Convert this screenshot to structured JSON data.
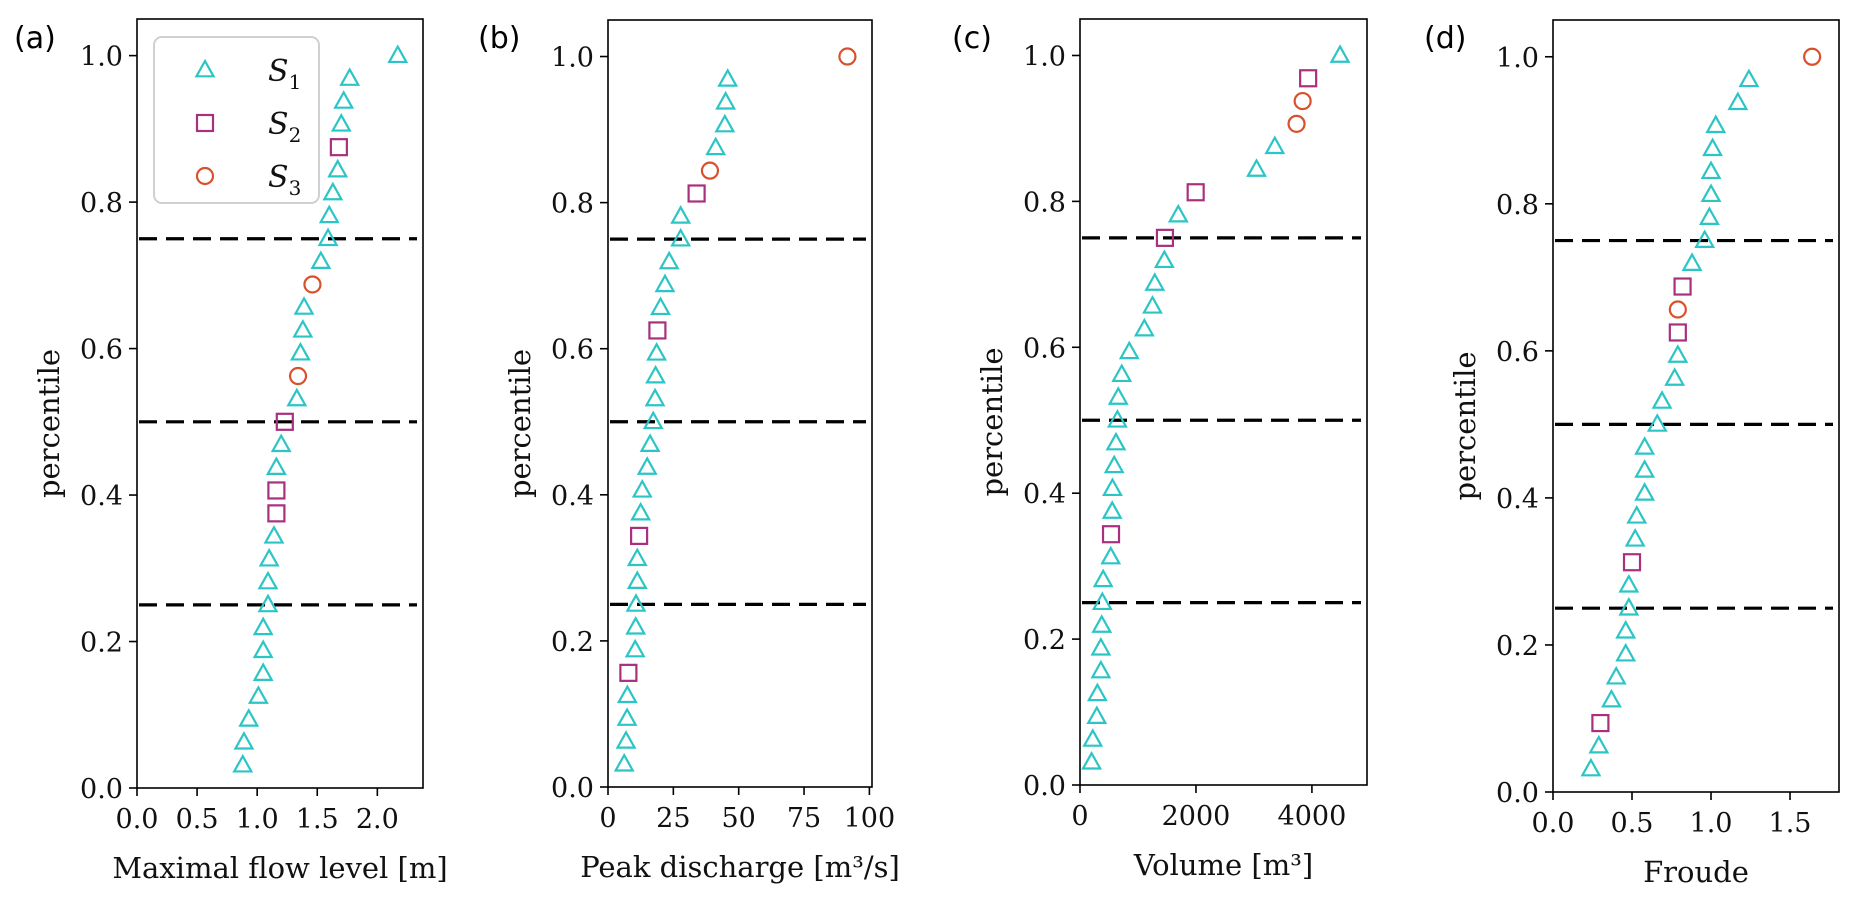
{
  "figure": {
    "colors": {
      "S1": "#2cc5c5",
      "S2": "#a8307f",
      "S3": "#d9512c",
      "reference_lines": "#000000"
    },
    "legend": {
      "placement": "upper-left of panel (a)",
      "entries": [
        {
          "series": "S1",
          "label": "S",
          "subscript": "1",
          "marker": "triangle"
        },
        {
          "series": "S2",
          "label": "S",
          "subscript": "2",
          "marker": "square"
        },
        {
          "series": "S3",
          "label": "S",
          "subscript": "3",
          "marker": "circle"
        }
      ]
    }
  },
  "chart_data": [
    {
      "type": "scatter",
      "panel_label": "(a)",
      "title": "",
      "xlabel": "Maximal flow level [m]",
      "ylabel": "percentile",
      "xlim": [
        0,
        2.38
      ],
      "ylim": [
        0,
        1.05
      ],
      "xticks": [
        0.0,
        0.5,
        1.0,
        1.5,
        2.0
      ],
      "xtick_labels": [
        "0.0",
        "0.5",
        "1.0",
        "1.5",
        "2.0"
      ],
      "yticks": [
        0.0,
        0.2,
        0.4,
        0.6,
        0.8,
        1.0
      ],
      "ytick_labels": [
        "0.0",
        "0.2",
        "0.4",
        "0.6",
        "0.8",
        "1.0"
      ],
      "hlines": [
        0.25,
        0.5,
        0.75
      ],
      "grid": false,
      "legend": true,
      "percentiles_count": 32,
      "x": [
        0.88,
        0.89,
        0.93,
        1.01,
        1.05,
        1.05,
        1.05,
        1.09,
        1.09,
        1.1,
        1.14,
        1.16,
        1.16,
        1.16,
        1.2,
        1.23,
        1.33,
        1.34,
        1.36,
        1.38,
        1.39,
        1.46,
        1.53,
        1.59,
        1.6,
        1.63,
        1.67,
        1.68,
        1.7,
        1.72,
        1.77,
        2.17
      ],
      "series_of_point": [
        "S1",
        "S1",
        "S1",
        "S1",
        "S1",
        "S1",
        "S1",
        "S1",
        "S1",
        "S1",
        "S1",
        "S2",
        "S2",
        "S1",
        "S1",
        "S2",
        "S1",
        "S3",
        "S1",
        "S1",
        "S1",
        "S3",
        "S1",
        "S1",
        "S1",
        "S1",
        "S1",
        "S2",
        "S1",
        "S1",
        "S1",
        "S1"
      ]
    },
    {
      "type": "scatter",
      "panel_label": "(b)",
      "title": "",
      "xlabel": "Peak discharge [m³/s]",
      "ylabel": "percentile",
      "xlim": [
        0,
        101
      ],
      "ylim": [
        0,
        1.05
      ],
      "xticks": [
        0,
        25,
        50,
        75,
        100
      ],
      "xtick_labels": [
        "0",
        "25",
        "50",
        "75",
        "100"
      ],
      "yticks": [
        0.0,
        0.2,
        0.4,
        0.6,
        0.8,
        1.0
      ],
      "ytick_labels": [
        "0.0",
        "0.2",
        "0.4",
        "0.6",
        "0.8",
        "1.0"
      ],
      "hlines": [
        0.25,
        0.5,
        0.75
      ],
      "grid": false,
      "legend": false,
      "percentiles_count": 32,
      "x": [
        6.2,
        6.9,
        7.3,
        7.4,
        7.8,
        10.4,
        10.6,
        10.7,
        11.2,
        11.2,
        11.9,
        12.5,
        13.1,
        15.0,
        16.1,
        17.3,
        18.0,
        18.2,
        18.6,
        18.9,
        20.1,
        21.8,
        23.4,
        27.8,
        27.8,
        33.9,
        39.0,
        41.2,
        44.7,
        45.0,
        45.8,
        91.6
      ],
      "series_of_point": [
        "S1",
        "S1",
        "S1",
        "S1",
        "S2",
        "S1",
        "S1",
        "S1",
        "S1",
        "S1",
        "S2",
        "S1",
        "S1",
        "S1",
        "S1",
        "S1",
        "S1",
        "S1",
        "S1",
        "S2",
        "S1",
        "S1",
        "S1",
        "S1",
        "S1",
        "S2",
        "S3",
        "S1",
        "S1",
        "S1",
        "S1",
        "S3"
      ]
    },
    {
      "type": "scatter",
      "panel_label": "(c)",
      "title": "",
      "xlabel": "Volume [m³]",
      "ylabel": "percentile",
      "xlim": [
        0,
        4950
      ],
      "ylim": [
        0,
        1.05
      ],
      "xticks": [
        0,
        2000,
        4000
      ],
      "xtick_labels": [
        "0",
        "2000",
        "4000"
      ],
      "yticks": [
        0.0,
        0.2,
        0.4,
        0.6,
        0.8,
        1.0
      ],
      "ytick_labels": [
        "0.0",
        "0.2",
        "0.4",
        "0.6",
        "0.8",
        "1.0"
      ],
      "hlines": [
        0.25,
        0.5,
        0.75
      ],
      "grid": false,
      "legend": false,
      "percentiles_count": 32,
      "x": [
        200,
        220,
        290,
        300,
        360,
        360,
        375,
        385,
        400,
        530,
        535,
        555,
        560,
        590,
        620,
        645,
        660,
        720,
        850,
        1110,
        1250,
        1290,
        1455,
        1465,
        1695,
        1995,
        3045,
        3360,
        3735,
        3840,
        3935,
        4485
      ],
      "series_of_point": [
        "S1",
        "S1",
        "S1",
        "S1",
        "S1",
        "S1",
        "S1",
        "S1",
        "S1",
        "S1",
        "S2",
        "S1",
        "S1",
        "S1",
        "S1",
        "S1",
        "S1",
        "S1",
        "S1",
        "S1",
        "S1",
        "S1",
        "S1",
        "S2",
        "S1",
        "S2",
        "S1",
        "S1",
        "S3",
        "S3",
        "S2",
        "S1"
      ]
    },
    {
      "type": "scatter",
      "panel_label": "(d)",
      "title": "",
      "xlabel": "Froude",
      "ylabel": "percentile",
      "xlim": [
        0,
        1.81
      ],
      "ylim": [
        0,
        1.05
      ],
      "xticks": [
        0.0,
        0.5,
        1.0,
        1.5
      ],
      "xtick_labels": [
        "0.0",
        "0.5",
        "1.0",
        "1.5"
      ],
      "yticks": [
        0.0,
        0.2,
        0.4,
        0.6,
        0.8,
        1.0
      ],
      "ytick_labels": [
        "0.0",
        "0.2",
        "0.4",
        "0.6",
        "0.8",
        "1.0"
      ],
      "hlines": [
        0.25,
        0.5,
        0.75
      ],
      "grid": false,
      "legend": false,
      "percentiles_count": 32,
      "x": [
        0.24,
        0.29,
        0.3,
        0.37,
        0.4,
        0.46,
        0.46,
        0.48,
        0.48,
        0.5,
        0.52,
        0.53,
        0.58,
        0.58,
        0.58,
        0.66,
        0.69,
        0.77,
        0.79,
        0.79,
        0.79,
        0.82,
        0.88,
        0.96,
        0.99,
        1.0,
        1.0,
        1.01,
        1.03,
        1.17,
        1.24,
        1.64
      ],
      "series_of_point": [
        "S1",
        "S1",
        "S2",
        "S1",
        "S1",
        "S1",
        "S1",
        "S1",
        "S1",
        "S2",
        "S1",
        "S1",
        "S1",
        "S1",
        "S1",
        "S1",
        "S1",
        "S1",
        "S1",
        "S2",
        "S3",
        "S2",
        "S1",
        "S1",
        "S1",
        "S1",
        "S1",
        "S1",
        "S1",
        "S1",
        "S1",
        "S3"
      ]
    }
  ]
}
